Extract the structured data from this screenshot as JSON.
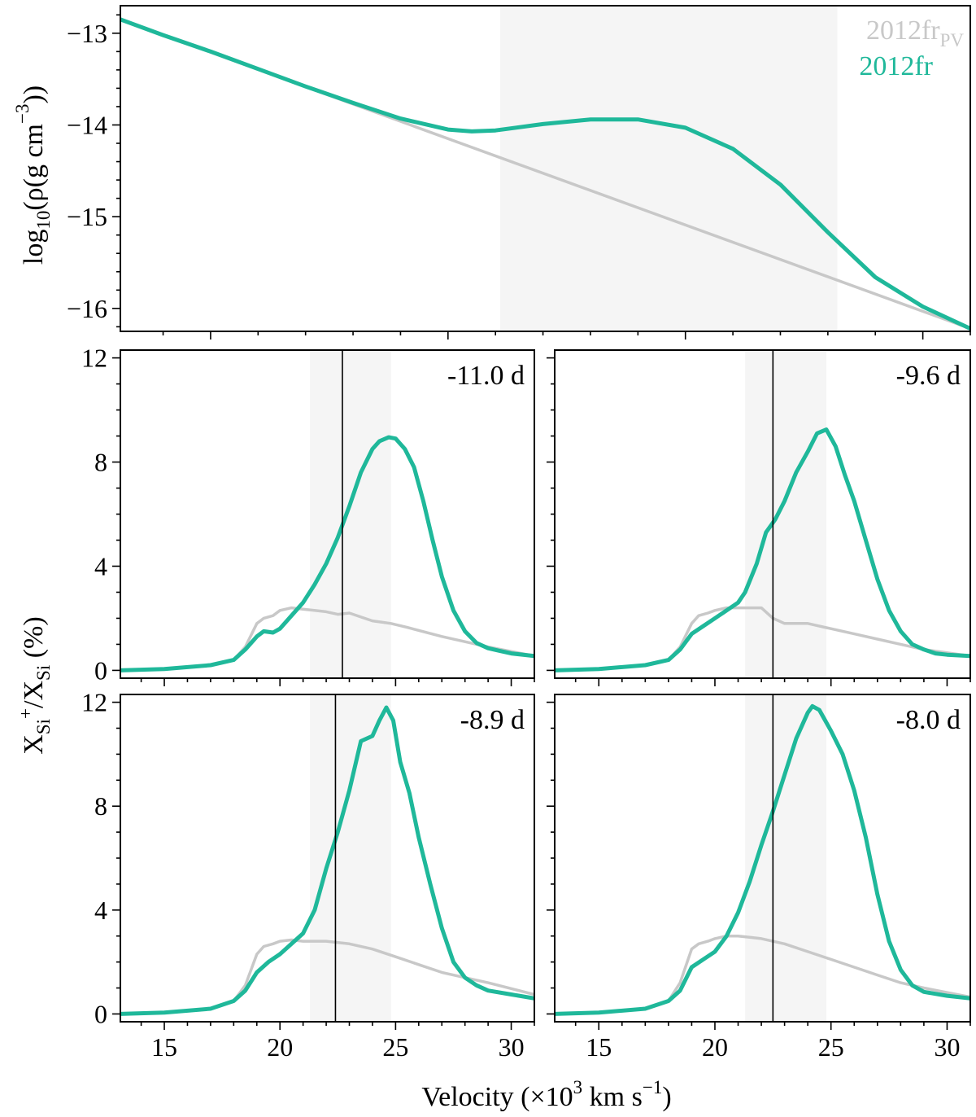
{
  "chart_data": [
    {
      "type": "line",
      "panel": "density",
      "ylabel": "log10(ρ(g cm^-3))",
      "ylabel_parts": {
        "a": "log",
        "sub": "10",
        "b": "(ρ(g cm",
        "sup": "−3",
        "c": "))"
      },
      "xlim": [
        13.1,
        31.0
      ],
      "ylim": [
        -16.25,
        -12.7
      ],
      "yticks": [
        -13,
        -14,
        -15,
        -16
      ],
      "ytick_labels": [
        "−13",
        "−14",
        "−15",
        "−16"
      ],
      "shaded_region": [
        21.1,
        28.2
      ],
      "legend": {
        "position": "top-right",
        "entries": [
          {
            "base": "2012fr",
            "sub": "PV",
            "color": "#c8c8c8"
          },
          {
            "base": "2012fr",
            "sub": "",
            "color": "#1fb89a"
          }
        ]
      },
      "series": [
        {
          "name": "2012fr_PV",
          "color": "#c8c8c8",
          "x": [
            13.1,
            31.0
          ],
          "y": [
            -12.85,
            -16.22
          ]
        },
        {
          "name": "2012fr",
          "color": "#1fb89a",
          "x": [
            13.1,
            14,
            15,
            16,
            17,
            18,
            19,
            20,
            20.5,
            21,
            22,
            23,
            24,
            25,
            26,
            27,
            28,
            29,
            30,
            31
          ],
          "y": [
            -12.85,
            -13.02,
            -13.2,
            -13.39,
            -13.58,
            -13.76,
            -13.93,
            -14.05,
            -14.07,
            -14.06,
            -13.99,
            -13.94,
            -13.94,
            -14.03,
            -14.26,
            -14.65,
            -15.17,
            -15.66,
            -15.98,
            -16.22
          ]
        }
      ]
    },
    {
      "type": "line",
      "panel": "epoch",
      "epoch_label": "-11.0 d",
      "xlim": [
        13.1,
        31.0
      ],
      "ylim": [
        -0.3,
        12.3
      ],
      "yticks": [
        0,
        4,
        8,
        12
      ],
      "ytick_labels": [
        "0",
        "4",
        "8",
        "12"
      ],
      "shaded_region": [
        21.3,
        24.8
      ],
      "vline": 22.7,
      "series": [
        {
          "name": "2012fr_PV",
          "color": "#c8c8c8",
          "x": [
            13.1,
            15,
            17,
            18,
            18.5,
            19,
            19.3,
            19.7,
            20,
            20.5,
            21,
            22,
            22.5,
            23,
            24,
            24.8,
            25.5,
            27,
            29,
            31
          ],
          "y": [
            0,
            0.05,
            0.2,
            0.4,
            0.9,
            1.8,
            2.0,
            2.1,
            2.3,
            2.4,
            2.35,
            2.25,
            2.15,
            2.2,
            1.9,
            1.8,
            1.65,
            1.3,
            0.9,
            0.55
          ]
        },
        {
          "name": "2012fr",
          "color": "#1fb89a",
          "x": [
            13.1,
            15,
            17,
            18,
            18.5,
            19,
            19.3,
            19.7,
            20,
            20.5,
            21,
            21.5,
            22,
            22.5,
            23,
            23.5,
            24,
            24.3,
            24.7,
            25,
            25.4,
            25.8,
            26.2,
            26.6,
            27,
            27.5,
            28,
            28.5,
            29,
            29.5,
            30,
            31
          ],
          "y": [
            0,
            0.05,
            0.2,
            0.4,
            0.8,
            1.3,
            1.5,
            1.45,
            1.6,
            2.1,
            2.6,
            3.3,
            4.1,
            5.1,
            6.3,
            7.6,
            8.5,
            8.8,
            8.95,
            8.9,
            8.5,
            7.8,
            6.5,
            5.0,
            3.6,
            2.3,
            1.5,
            1.05,
            0.85,
            0.75,
            0.65,
            0.55
          ]
        }
      ]
    },
    {
      "type": "line",
      "panel": "epoch",
      "epoch_label": "-9.6 d",
      "xlim": [
        13.1,
        31.0
      ],
      "ylim": [
        -0.3,
        12.3
      ],
      "yticks": [
        0,
        4,
        8,
        12
      ],
      "ytick_labels": [
        "0",
        "4",
        "8",
        "12"
      ],
      "shaded_region": [
        21.3,
        24.8
      ],
      "vline": 22.5,
      "series": [
        {
          "name": "2012fr_PV",
          "color": "#c8c8c8",
          "x": [
            13.1,
            15,
            17,
            18,
            18.5,
            19,
            19.3,
            19.7,
            20,
            20.5,
            21,
            21.5,
            22,
            22.5,
            23,
            24,
            25,
            26,
            27,
            28,
            29,
            31
          ],
          "y": [
            0,
            0.05,
            0.2,
            0.4,
            0.9,
            1.8,
            2.1,
            2.2,
            2.3,
            2.4,
            2.4,
            2.4,
            2.4,
            2.0,
            1.8,
            1.8,
            1.6,
            1.4,
            1.2,
            1.0,
            0.8,
            0.55
          ]
        },
        {
          "name": "2012fr",
          "color": "#1fb89a",
          "x": [
            13.1,
            15,
            17,
            18,
            18.5,
            19,
            19.5,
            20,
            20.5,
            21,
            21.3,
            21.8,
            22.2,
            22.6,
            23,
            23.5,
            24,
            24.4,
            24.8,
            25.2,
            25.6,
            26,
            26.5,
            27,
            27.5,
            28,
            28.5,
            29,
            29.5,
            30,
            31
          ],
          "y": [
            0,
            0.05,
            0.2,
            0.4,
            0.8,
            1.4,
            1.7,
            2.0,
            2.3,
            2.6,
            3.0,
            4.1,
            5.3,
            5.8,
            6.5,
            7.6,
            8.4,
            9.1,
            9.25,
            8.6,
            7.5,
            6.5,
            5.0,
            3.5,
            2.3,
            1.5,
            1.0,
            0.8,
            0.65,
            0.6,
            0.55
          ]
        }
      ]
    },
    {
      "type": "line",
      "panel": "epoch",
      "epoch_label": "-8.9 d",
      "xlim": [
        13.1,
        31.0
      ],
      "ylim": [
        -0.3,
        12.3
      ],
      "yticks": [
        0,
        4,
        8,
        12
      ],
      "ytick_labels": [
        "0",
        "4",
        "8",
        "12"
      ],
      "shaded_region": [
        21.3,
        24.8
      ],
      "vline": 22.4,
      "series": [
        {
          "name": "2012fr_PV",
          "color": "#c8c8c8",
          "x": [
            13.1,
            15,
            17,
            18,
            18.5,
            19,
            19.3,
            19.7,
            20,
            20.5,
            21,
            21.5,
            22,
            23,
            24,
            25,
            26,
            27,
            28,
            29,
            31
          ],
          "y": [
            0,
            0.05,
            0.2,
            0.5,
            1.1,
            2.3,
            2.6,
            2.7,
            2.8,
            2.85,
            2.8,
            2.8,
            2.8,
            2.7,
            2.5,
            2.2,
            1.9,
            1.6,
            1.4,
            1.2,
            0.75
          ]
        },
        {
          "name": "2012fr",
          "color": "#1fb89a",
          "x": [
            13.1,
            15,
            17,
            18,
            18.5,
            19,
            19.5,
            20,
            20.5,
            21,
            21.5,
            22,
            22.5,
            23,
            23.5,
            24,
            24.3,
            24.6,
            24.9,
            25.2,
            25.6,
            26,
            26.5,
            27,
            27.5,
            28,
            28.5,
            29,
            30,
            31
          ],
          "y": [
            0,
            0.05,
            0.2,
            0.5,
            0.9,
            1.6,
            2.0,
            2.3,
            2.7,
            3.1,
            4.0,
            5.6,
            7.0,
            8.6,
            10.5,
            10.7,
            11.3,
            11.8,
            11.3,
            9.7,
            8.5,
            6.8,
            5.0,
            3.3,
            2.0,
            1.4,
            1.1,
            0.9,
            0.75,
            0.6
          ]
        }
      ]
    },
    {
      "type": "line",
      "panel": "epoch",
      "epoch_label": "-8.0 d",
      "xlim": [
        13.1,
        31.0
      ],
      "ylim": [
        -0.3,
        12.3
      ],
      "yticks": [
        0,
        4,
        8,
        12
      ],
      "ytick_labels": [
        "0",
        "4",
        "8",
        "12"
      ],
      "shaded_region": [
        21.3,
        24.8
      ],
      "vline": 22.5,
      "series": [
        {
          "name": "2012fr_PV",
          "color": "#c8c8c8",
          "x": [
            13.1,
            15,
            17,
            18,
            18.5,
            19,
            19.3,
            19.7,
            20,
            20.5,
            21,
            21.5,
            22,
            23,
            24,
            25,
            26,
            27,
            28,
            29,
            31
          ],
          "y": [
            0,
            0.05,
            0.2,
            0.5,
            1.2,
            2.5,
            2.7,
            2.8,
            2.9,
            3.0,
            3.0,
            2.95,
            2.9,
            2.7,
            2.4,
            2.1,
            1.8,
            1.5,
            1.2,
            1.0,
            0.65
          ]
        },
        {
          "name": "2012fr",
          "color": "#1fb89a",
          "x": [
            13.1,
            15,
            17,
            18,
            18.5,
            19,
            19.5,
            20,
            20.5,
            21,
            21.5,
            22,
            22.5,
            23,
            23.5,
            24,
            24.2,
            24.5,
            25,
            25.5,
            26,
            26.5,
            27,
            27.5,
            28,
            28.5,
            29,
            30,
            31
          ],
          "y": [
            0,
            0.05,
            0.2,
            0.5,
            0.9,
            1.8,
            2.1,
            2.4,
            3.0,
            3.9,
            5.1,
            6.5,
            7.8,
            9.2,
            10.6,
            11.6,
            11.85,
            11.7,
            10.9,
            10.0,
            8.6,
            6.8,
            4.6,
            2.8,
            1.7,
            1.1,
            0.85,
            0.7,
            0.6
          ]
        }
      ]
    }
  ],
  "shared": {
    "xticks": [
      15,
      20,
      25,
      30
    ],
    "xtick_labels": [
      "15",
      "20",
      "25",
      "30"
    ],
    "xlabel": {
      "a": "Velocity (×10",
      "sup1": "3",
      "b": " km s",
      "sup2": "−1",
      "c": ")"
    },
    "ylabel_lower": {
      "a": "X",
      "sub1": "Si",
      "sup": "+",
      "b": "/X",
      "sub2": "Si",
      "c": " (%)"
    }
  },
  "colors": {
    "grey": "#c8c8c8",
    "teal": "#1fb89a",
    "shade": "#f5f5f5",
    "axis": "#000000"
  }
}
